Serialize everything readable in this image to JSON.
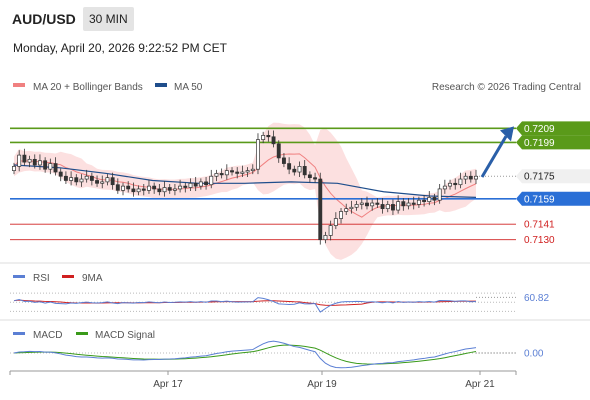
{
  "header": {
    "symbol": "AUD/USD",
    "timeframe": "30 MIN",
    "datetime": "Monday, April 20, 2026 9:22:52 PM CET"
  },
  "legend": {
    "ma20": "MA 20 + Bollinger Bands",
    "ma50": "MA 50",
    "credit": "Research © 2026 Trading Central",
    "ma20_color": "#f08080",
    "ma50_color": "#1f4e8c"
  },
  "levels": [
    {
      "value": "0.7209",
      "kind": "resistance",
      "color": "#5a9a1a"
    },
    {
      "value": "0.7199",
      "kind": "resistance",
      "color": "#5a9a1a"
    },
    {
      "value": "0.7175",
      "kind": "last",
      "color": "#222222"
    },
    {
      "value": "0.7159",
      "kind": "pivot",
      "color": "#2a6fd6"
    },
    {
      "value": "0.7141",
      "kind": "support",
      "color": "#d02020"
    },
    {
      "value": "0.7130",
      "kind": "support",
      "color": "#d02020"
    }
  ],
  "rsi": {
    "label": "RSI",
    "signal_label": "9MA",
    "value": "60.82",
    "line_color": "#5b7fd4",
    "signal_color": "#d02020",
    "hidden_levels": [
      "70",
      "50"
    ]
  },
  "macd": {
    "label": "MACD",
    "signal_label": "MACD Signal",
    "value": "0.00",
    "line_color": "#5b7fd4",
    "signal_color": "#3a9a1a",
    "hidden_level": "0"
  },
  "xaxis": {
    "ticks": [
      "Apr 17",
      "Apr 19",
      "Apr 21"
    ]
  },
  "chart_data": {
    "type": "candlestick",
    "price_range": [
      0.7117,
      0.7222
    ],
    "close": [
      0.7182,
      0.719,
      0.7185,
      0.7187,
      0.7183,
      0.7186,
      0.718,
      0.7184,
      0.7178,
      0.7175,
      0.7172,
      0.7174,
      0.7171,
      0.7173,
      0.7175,
      0.7172,
      0.717,
      0.7171,
      0.7174,
      0.7169,
      0.7165,
      0.7168,
      0.7166,
      0.7164,
      0.7166,
      0.7165,
      0.7168,
      0.7166,
      0.7164,
      0.7167,
      0.7165,
      0.7166,
      0.7168,
      0.7167,
      0.717,
      0.7168,
      0.7171,
      0.7169,
      0.7175,
      0.7177,
      0.7176,
      0.7179,
      0.7178,
      0.7177,
      0.7178,
      0.7179,
      0.718,
      0.7201,
      0.7204,
      0.7203,
      0.7198,
      0.7188,
      0.7184,
      0.718,
      0.7178,
      0.7182,
      0.7176,
      0.7174,
      0.7173,
      0.713,
      0.7133,
      0.714,
      0.7145,
      0.715,
      0.7152,
      0.7153,
      0.7155,
      0.7156,
      0.7154,
      0.7156,
      0.7155,
      0.7152,
      0.7155,
      0.7151,
      0.7157,
      0.7154,
      0.7156,
      0.7155,
      0.7158,
      0.7157,
      0.716,
      0.7158,
      0.7166,
      0.7168,
      0.717,
      0.7169,
      0.7173,
      0.7175,
      0.7173,
      0.7175
    ],
    "ma50": [
      0.7183,
      0.7181,
      0.7177,
      0.7172,
      0.717,
      0.717,
      0.7171,
      0.717,
      0.7164,
      0.7161,
      0.716
    ],
    "rsi_range": [
      20,
      90
    ],
    "macd_range": [
      -0.0008,
      0.0008
    ],
    "annotation": "up-arrow to 0.7209"
  }
}
